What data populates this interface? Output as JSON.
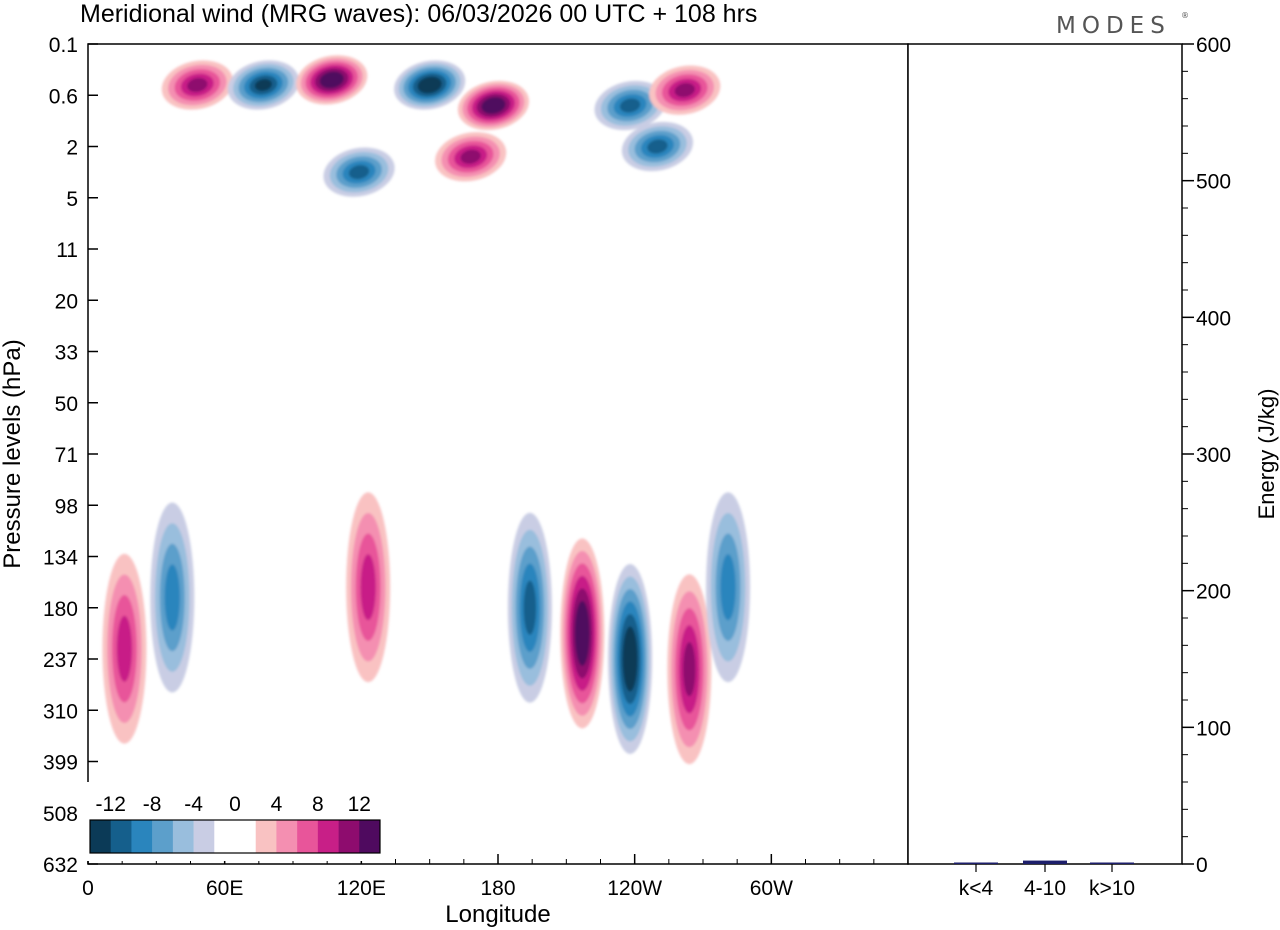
{
  "chart_data": [
    {
      "type": "heatmap",
      "title": "Meridional wind (MRG waves):  06/03/2026  00 UTC  + 108 hrs",
      "xlabel": "Longitude",
      "ylabel": "Pressure levels (hPa)",
      "x_ticks": [
        "0",
        "60E",
        "120E",
        "180",
        "120W",
        "60W"
      ],
      "x_tick_degrees_east": [
        0,
        60,
        120,
        180,
        240,
        300
      ],
      "xlim": [
        0,
        360
      ],
      "y_ticks": [
        "0.1",
        "0.6",
        "2",
        "5",
        "11",
        "20",
        "33",
        "50",
        "71",
        "98",
        "134",
        "180",
        "237",
        "310",
        "399",
        "508",
        "632"
      ],
      "colorbar": {
        "labels": [
          "-12",
          "-8",
          "-4",
          "0",
          "4",
          "8",
          "12"
        ],
        "colors": [
          "#0b3a57",
          "#155f8c",
          "#2a85bd",
          "#5c9fcb",
          "#99bedd",
          "#c9cde4",
          "#ffffff",
          "#ffffff",
          "#f9c2c2",
          "#f48fb1",
          "#e8559a",
          "#c81f87",
          "#8e0c6e",
          "#4f0a5f"
        ]
      },
      "features": [
        {
          "name": "positive",
          "lon": 48,
          "level_index": 0.8,
          "value": 10
        },
        {
          "name": "negative",
          "lon": 77,
          "level_index": 0.8,
          "value": -12
        },
        {
          "name": "positive",
          "lon": 107,
          "level_index": 0.7,
          "value": 13
        },
        {
          "name": "negative",
          "lon": 150,
          "level_index": 0.8,
          "value": -13
        },
        {
          "name": "positive",
          "lon": 178,
          "level_index": 1.2,
          "value": 13
        },
        {
          "name": "negative",
          "lon": 238,
          "level_index": 1.2,
          "value": -9
        },
        {
          "name": "positive",
          "lon": 262,
          "level_index": 0.9,
          "value": 9
        },
        {
          "name": "positive",
          "lon": 168,
          "level_index": 2.2,
          "value": 9
        },
        {
          "name": "negative",
          "lon": 250,
          "level_index": 2.0,
          "value": -9
        },
        {
          "name": "negative",
          "lon": 119,
          "level_index": 2.5,
          "value": -10
        },
        {
          "name": "negative",
          "lon": 37,
          "level_index": 10.8,
          "value": -7
        },
        {
          "name": "positive",
          "lon": 16,
          "level_index": 11.8,
          "value": 8
        },
        {
          "name": "positive",
          "lon": 123,
          "level_index": 10.6,
          "value": 7
        },
        {
          "name": "negative",
          "lon": 194,
          "level_index": 11.0,
          "value": -9
        },
        {
          "name": "positive",
          "lon": 217,
          "level_index": 11.5,
          "value": 13
        },
        {
          "name": "negative",
          "lon": 238,
          "level_index": 12.0,
          "value": -14
        },
        {
          "name": "positive",
          "lon": 264,
          "level_index": 12.2,
          "value": 10
        },
        {
          "name": "negative",
          "lon": 281,
          "level_index": 10.6,
          "value": -8
        }
      ]
    },
    {
      "type": "bar",
      "categories": [
        "k<4",
        "4-10",
        "k>10"
      ],
      "values": [
        0.5,
        2.5,
        0.5
      ],
      "ylabel": "Energy (J/kg)",
      "ylim": [
        0,
        600
      ],
      "y_ticks": [
        "0",
        "100",
        "200",
        "300",
        "400",
        "500",
        "600"
      ]
    }
  ],
  "header": {
    "title": "Meridional wind (MRG waves):  06/03/2026  00 UTC  + 108 hrs",
    "brand": "MODES",
    "brand_mark": "®"
  }
}
